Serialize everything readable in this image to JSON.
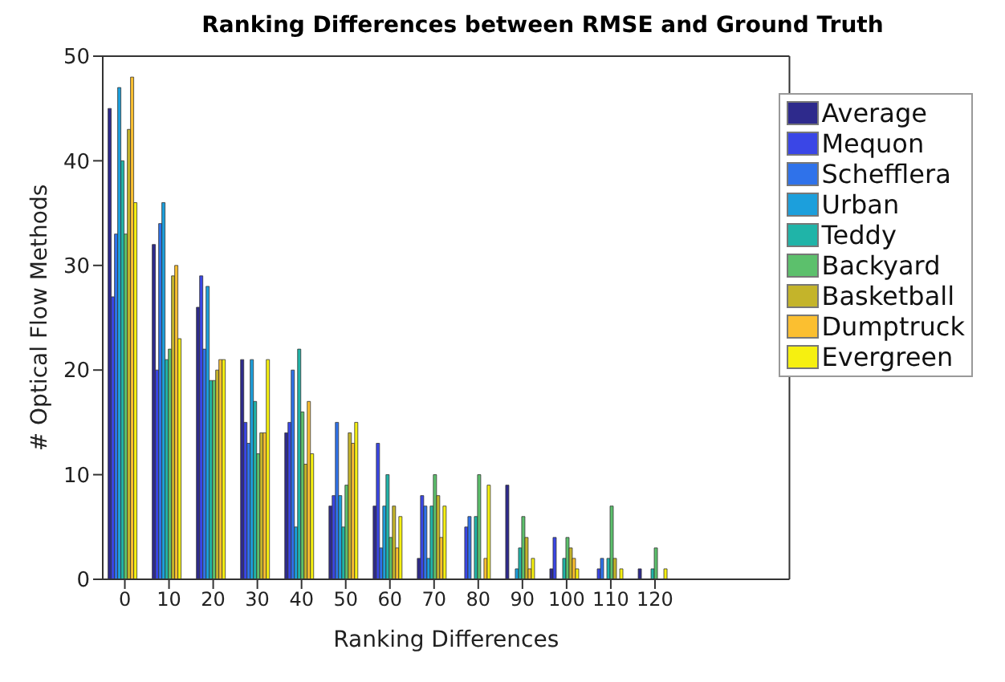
{
  "chart_data": {
    "type": "bar",
    "title": "Ranking Differences between RMSE and Ground Truth",
    "xlabel": "Ranking Differences",
    "ylabel": "# Optical Flow Methods",
    "categories": [
      "0",
      "10",
      "20",
      "30",
      "40",
      "50",
      "60",
      "70",
      "80",
      "90",
      "100",
      "110",
      "120"
    ],
    "ylim": [
      0,
      50
    ],
    "yticks": [
      0,
      10,
      20,
      30,
      40,
      50
    ],
    "legend": "top right",
    "series": [
      {
        "name": "Average",
        "color": "#2e2a8c",
        "values": [
          45,
          32,
          26,
          21,
          14,
          7,
          7,
          2,
          0,
          9,
          1,
          0,
          1
        ]
      },
      {
        "name": "Mequon",
        "color": "#3a46e6",
        "values": [
          27,
          20,
          29,
          15,
          15,
          8,
          13,
          8,
          5,
          0,
          4,
          1,
          0
        ]
      },
      {
        "name": "Schefflera",
        "color": "#2f72ea",
        "values": [
          33,
          34,
          22,
          13,
          20,
          15,
          3,
          7,
          6,
          0,
          0,
          2,
          0
        ]
      },
      {
        "name": "Urban",
        "color": "#1c9fdc",
        "values": [
          47,
          36,
          28,
          21,
          5,
          8,
          7,
          2,
          0,
          1,
          0,
          0,
          0
        ]
      },
      {
        "name": "Teddy",
        "color": "#20b4a8",
        "values": [
          40,
          21,
          19,
          17,
          22,
          5,
          10,
          7,
          6,
          3,
          2,
          2,
          1
        ]
      },
      {
        "name": "Backyard",
        "color": "#5cc06c",
        "values": [
          33,
          22,
          19,
          12,
          16,
          9,
          4,
          10,
          10,
          6,
          4,
          7,
          3
        ]
      },
      {
        "name": "Basketball",
        "color": "#c4b42a",
        "values": [
          43,
          29,
          20,
          14,
          11,
          14,
          7,
          8,
          0,
          4,
          3,
          2,
          0
        ]
      },
      {
        "name": "Dumptruck",
        "color": "#fbbf30",
        "values": [
          48,
          30,
          21,
          14,
          17,
          13,
          3,
          4,
          2,
          1,
          2,
          0,
          0
        ]
      },
      {
        "name": "Evergreen",
        "color": "#f6f010",
        "values": [
          36,
          23,
          21,
          21,
          12,
          15,
          6,
          7,
          9,
          2,
          1,
          1,
          1
        ]
      }
    ]
  }
}
